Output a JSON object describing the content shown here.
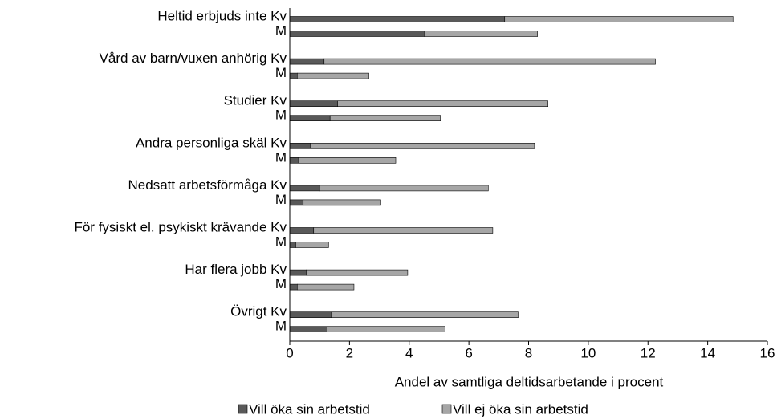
{
  "chart_data": {
    "type": "stacked-bar-horizontal",
    "xlabel": "Andel av samtliga deltidsarbetande i procent",
    "categories": [
      "Heltid erbjuds inte Kv",
      "M",
      "Vård av barn/vuxen anhörig Kv",
      "M",
      "Studier Kv",
      "M",
      "Andra personliga skäl Kv",
      "M",
      "Nedsatt arbetsförmåga Kv",
      "M",
      "För fysiskt el. psykiskt krävande Kv",
      "M",
      "Har flera jobb Kv",
      "M",
      "Övrigt Kv",
      "M"
    ],
    "series": [
      {
        "name": "Vill öka sin arbetstid",
        "color": "#595959",
        "values": [
          7.2,
          4.5,
          1.15,
          0.25,
          1.6,
          1.35,
          0.7,
          0.3,
          1.0,
          0.45,
          0.8,
          0.2,
          0.55,
          0.25,
          1.4,
          1.25
        ]
      },
      {
        "name": "Vill ej öka sin arbetstid",
        "color": "#a6a6a6",
        "values": [
          7.65,
          3.8,
          11.1,
          2.4,
          7.05,
          3.7,
          7.5,
          3.25,
          5.65,
          2.6,
          6.0,
          1.1,
          3.4,
          1.9,
          6.25,
          3.95
        ]
      }
    ],
    "xlim": [
      0,
      16
    ],
    "xticks": [
      0,
      2,
      4,
      6,
      8,
      10,
      12,
      14,
      16
    ]
  }
}
